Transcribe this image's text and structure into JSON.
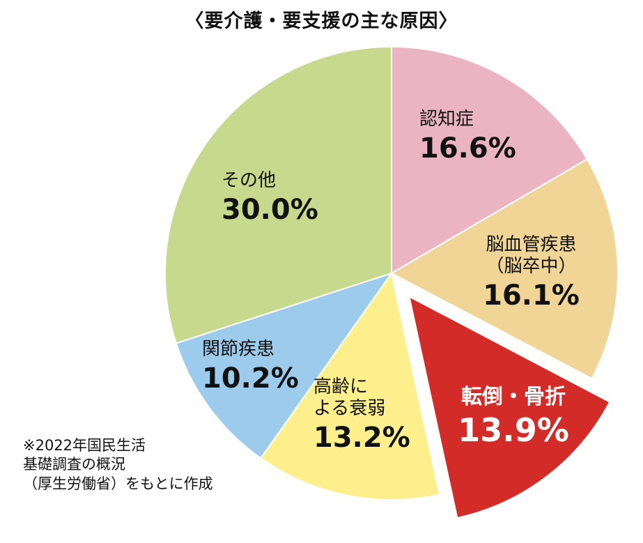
{
  "title": "〈要介護・要支援の主な原因〉",
  "note": "※2022年国民生活\n基礎調査の概況\n（厚生労働省）をもとに作成",
  "chart_data": {
    "type": "pie",
    "title": "〈要介護・要支援の主な原因〉",
    "unit": "%",
    "slices": [
      {
        "label": "認知症",
        "value": 16.6,
        "value_label": "16.6%",
        "color": "#EBB4C2"
      },
      {
        "label": "脳血管疾患\n（脳卒中）",
        "value": 16.1,
        "value_label": "16.1%",
        "color": "#F0D597"
      },
      {
        "label": "転倒・骨折",
        "value": 13.9,
        "value_label": "13.9%",
        "color": "#D22B28",
        "highlighted": true,
        "exploded": true
      },
      {
        "label": "高齢に\nよる衰弱",
        "value": 13.2,
        "value_label": "13.2%",
        "color": "#FCEF8C"
      },
      {
        "label": "関節疾患",
        "value": 10.2,
        "value_label": "10.2%",
        "color": "#9DCBEB"
      },
      {
        "label": "その他",
        "value": 30.0,
        "value_label": "30.0%",
        "color": "#C6D98C"
      }
    ]
  }
}
